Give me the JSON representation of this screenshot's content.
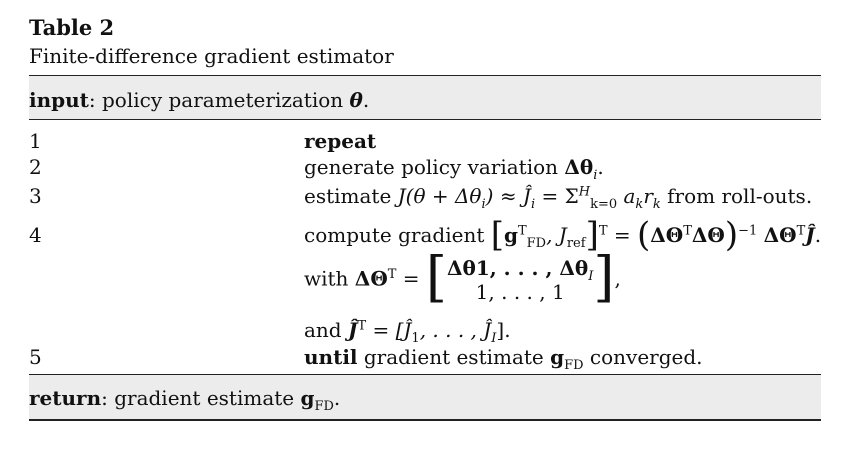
{
  "caption": {
    "title": "Table 2",
    "subtitle": "Finite-difference gradient estimator"
  },
  "input": {
    "keyword": "input",
    "text": ": policy parameterization ",
    "symbol": "θ",
    "end": "."
  },
  "steps": [
    {
      "number": "1",
      "keyword": "repeat"
    },
    {
      "number": "2",
      "text": "generate policy variation ",
      "symbol": "Δθ",
      "sub": "i",
      "end": "."
    },
    {
      "number": "3",
      "text_start": "estimate ",
      "formula": "J(θ + Δθ",
      "formula_sub": "i",
      "formula_end": ") ≈ Ĵ",
      "approx_sub": "i",
      "eq": " = Σ",
      "sum_sub": "k=0",
      "sum_sup": "H",
      "terms": " a",
      "a_sub": "k",
      "r": "r",
      "r_sub": "k",
      "text_end": " from roll-outs."
    },
    {
      "number": "4",
      "text": "compute gradient ",
      "g": "g",
      "g_sup": "T",
      "g_sub": "FD",
      "jref": ", J",
      "jref_sub": "ref",
      "outer_sup": "T",
      "eq": " = ",
      "theta_big": "ΔΘ",
      "tsup": "T",
      "inv": "−1",
      "jhat": "Ĵ",
      "end": "."
    },
    {
      "with": "with ",
      "theta_big": "ΔΘ",
      "tsup": "T",
      "eq": " = ",
      "row1": "Δθ1, . . . , Δθ",
      "row1_sub": "I",
      "row2": "1, . . . , 1",
      "end": ","
    },
    {
      "and": "and ",
      "jhat": "Ĵ",
      "tsup": "T",
      "eq": " = [Ĵ",
      "sub1": "1",
      "mid": ", . . . , Ĵ",
      "subI": "I",
      "end": "]."
    },
    {
      "number": "5",
      "keyword": "until",
      "text": " gradient estimate ",
      "g": "g",
      "g_sub": "FD",
      "end": " converged."
    }
  ],
  "return": {
    "keyword": "return",
    "text": ": gradient estimate ",
    "g": "g",
    "g_sub": "FD",
    "end": "."
  }
}
